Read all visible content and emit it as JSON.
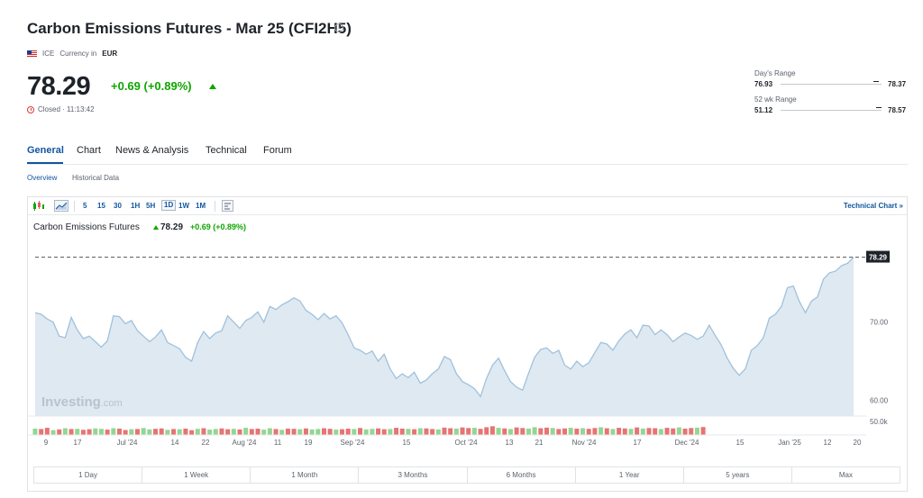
{
  "header": {
    "title": "Carbon Emissions Futures - Mar 25 (CFI2H5)",
    "info_icon": "info-icon",
    "exchange": "ICE",
    "currency_label": "Currency in",
    "currency": "EUR",
    "price": "78.29",
    "change": "+0.69 (+0.89%)",
    "status": "Closed · 11:13:42"
  },
  "ranges": {
    "day_label": "Day's Range",
    "day_low": "76.93",
    "day_high": "78.37",
    "wk52_label": "52 wk Range",
    "wk52_low": "51.12",
    "wk52_high": "78.57"
  },
  "tabs": [
    "General",
    "Chart",
    "News & Analysis",
    "Technical",
    "Forum"
  ],
  "subtabs": [
    "Overview",
    "Historical Data"
  ],
  "toolbar": {
    "intervals": [
      "5",
      "15",
      "30",
      "1H",
      "5H",
      "1D",
      "1W",
      "1M"
    ],
    "selected_interval": "1D",
    "technical_chart": "Technical Chart »"
  },
  "chart_header": {
    "name": "Carbon Emissions Futures",
    "price": "78.29",
    "change": "+0.69 (+0.89%)"
  },
  "watermark": {
    "brand": "Investing",
    "suffix": ".com"
  },
  "range_buttons": [
    "1 Day",
    "1 Week",
    "1 Month",
    "3 Months",
    "6 Months",
    "1 Year",
    "5 years",
    "Max"
  ],
  "colors": {
    "accent": "#1256a0",
    "up": "#0ea600",
    "down": "#e35b5b",
    "area_fill": "#dfe9f2",
    "line": "#9fc1dc"
  },
  "chart_data": {
    "type": "area",
    "y_ticks": [
      "70.00",
      "60.00"
    ],
    "volume_tick": "50.0k",
    "last_price_label": "78.29",
    "x_tick_labels": [
      "9",
      "17",
      "Jul '24",
      "14",
      "22",
      "Aug '24",
      "11",
      "19",
      "Sep '24",
      "15",
      "Oct '24",
      "13",
      "21",
      "Nov '24",
      "17",
      "Dec '24",
      "15",
      "Jan '25",
      "12",
      "20"
    ],
    "ylim": [
      58,
      81
    ],
    "grid": false,
    "series": [
      {
        "values": [
          71.2,
          71.0,
          70.4,
          70.0,
          68.2,
          68.0,
          70.6,
          69.0,
          67.9,
          68.2,
          67.5,
          66.8,
          67.6,
          70.8,
          70.7,
          69.8,
          70.2,
          68.9,
          68.2,
          67.5,
          68.1,
          69.0,
          67.4,
          67.0,
          66.6,
          65.5,
          65.0,
          67.4,
          68.8,
          67.9,
          68.6,
          68.9,
          70.8,
          70.0,
          69.2,
          70.2,
          70.6,
          71.3,
          70.0,
          72.0,
          71.6,
          72.2,
          72.6,
          73.1,
          72.7,
          71.5,
          71.0,
          70.3,
          71.1,
          70.4,
          70.8,
          69.9,
          68.4,
          66.7,
          66.4,
          65.9,
          66.3,
          65.0,
          65.9,
          64.0,
          62.8,
          63.4,
          62.9,
          63.6,
          62.2,
          62.6,
          63.4,
          64.0,
          65.6,
          65.2,
          63.4,
          62.4,
          62.0,
          61.5,
          60.5,
          62.8,
          64.5,
          65.4,
          63.8,
          62.4,
          61.7,
          61.3,
          63.5,
          65.5,
          66.5,
          66.7,
          66.0,
          66.4,
          64.5,
          64.0,
          65.0,
          64.3,
          64.8,
          66.1,
          67.4,
          67.2,
          66.4,
          67.6,
          68.5,
          69.0,
          68.0,
          69.6,
          69.5,
          68.4,
          69.0,
          68.4,
          67.5,
          68.1,
          68.6,
          68.3,
          67.8,
          68.2,
          69.6,
          68.3,
          67.1,
          65.4,
          64.1,
          63.2,
          64.0,
          66.4,
          67.0,
          68.0,
          70.5,
          71.0,
          72.0,
          74.4,
          74.6,
          72.6,
          71.2,
          72.7,
          73.2,
          75.5,
          76.3,
          76.5,
          77.2,
          77.5,
          78.29
        ]
      }
    ],
    "volume_bars": {
      "note_colors": "alternating red/green daily volume",
      "values": [
        3.2,
        3.0,
        3.6,
        2.4,
        2.8,
        3.4,
        3.0,
        3.1,
        2.6,
        2.9,
        3.3,
        3.1,
        2.7,
        3.4,
        3.2,
        2.5,
        2.9,
        3.0,
        3.5,
        2.8,
        3.1,
        3.3,
        2.6,
        3.0,
        2.9,
        3.2,
        2.4,
        3.1,
        3.4,
        2.7,
        3.0,
        3.3,
        2.9,
        3.1,
        2.8,
        3.6,
        3.0,
        3.2,
        2.7,
        3.4,
        3.0,
        2.6,
        3.2,
        3.1,
        2.9,
        3.3,
        2.8,
        3.0,
        3.4,
        3.1,
        2.7,
        2.9,
        3.2,
        3.0,
        3.5,
        2.8,
        3.1,
        3.3,
        2.9,
        3.0,
        3.6,
        3.2,
        3.1,
        2.9,
        3.4,
        3.3,
        3.0,
        2.8,
        3.7,
        3.4,
        3.2,
        3.8,
        3.5,
        3.6,
        3.1,
        3.9,
        4.4,
        3.6,
        3.3,
        3.0,
        3.8,
        3.5,
        3.2,
        3.9,
        3.4,
        3.7,
        3.5,
        3.0,
        3.3,
        3.6,
        3.2,
        3.4,
        3.1,
        3.5,
        3.9,
        3.4,
        3.0,
        3.6,
        3.3,
        3.1,
        3.8,
        3.2,
        3.5,
        3.4,
        3.0,
        3.6,
        3.3,
        3.8,
        3.2,
        3.5,
        3.7,
        4.0,
        0,
        0,
        0,
        0,
        0,
        0,
        0,
        0,
        0,
        0,
        0,
        0,
        0,
        0,
        0,
        0,
        0,
        0,
        0,
        0,
        0,
        0,
        0,
        0
      ],
      "up_flags": [
        1,
        0,
        0,
        1,
        0,
        1,
        0,
        1,
        0,
        0,
        1,
        1,
        0,
        1,
        0,
        0,
        1,
        0,
        1,
        1,
        0,
        0,
        1,
        0,
        1,
        0,
        0,
        1,
        0,
        1,
        1,
        0,
        0,
        1,
        0,
        1,
        0,
        0,
        1,
        1,
        0,
        1,
        0,
        0,
        1,
        0,
        1,
        1,
        0,
        0,
        1,
        0,
        0,
        1,
        0,
        1,
        1,
        0,
        0,
        1,
        0,
        0,
        1,
        0,
        1,
        0,
        0,
        1,
        0,
        0,
        1,
        0,
        0,
        1,
        0,
        0,
        0,
        1,
        0,
        1,
        0,
        0,
        1,
        1,
        0,
        0,
        1,
        0,
        0,
        1,
        0,
        1,
        0,
        0,
        1,
        0,
        1,
        0,
        0,
        1,
        0,
        1,
        0,
        0,
        1,
        0,
        0,
        1,
        0,
        0,
        1,
        0,
        0,
        0,
        0,
        0,
        0,
        0,
        0,
        0,
        0,
        0,
        0,
        0,
        0,
        0,
        0,
        0,
        0,
        0,
        0,
        0,
        0,
        0,
        0,
        0
      ]
    }
  }
}
